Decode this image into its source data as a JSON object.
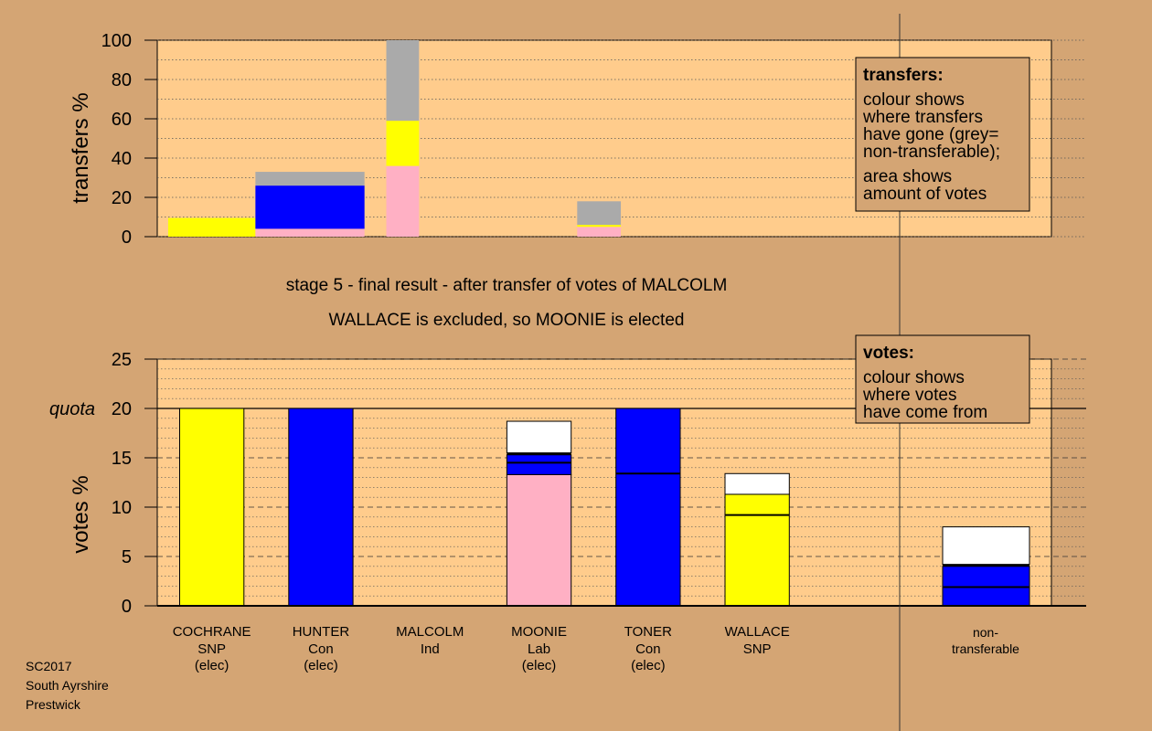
{
  "colors": {
    "background": "#d4a574",
    "plot_bg": "#ffcc8c",
    "SNP": "#ffff00",
    "Con": "#0000ff",
    "Lab": "#ffb0c4",
    "nontransferable": "#aaaaaa",
    "exhausted": "#ffffff"
  },
  "titles": {
    "line1": "stage 5 - final result - after transfer of votes of MALCOLM",
    "line2": "WALLACE is excluded, so MOONIE is elected"
  },
  "legend_transfers": {
    "title": "transfers:",
    "lines": [
      "colour shows",
      "where transfers",
      "have gone (grey=",
      "non-transferable);",
      "area shows",
      "amount of votes"
    ]
  },
  "legend_votes": {
    "title": "votes:",
    "lines": [
      "colour shows",
      "where votes",
      "have come from"
    ]
  },
  "quota_label": "quota",
  "footer": [
    "SC2017",
    "South Ayrshire",
    "Prestwick"
  ],
  "candidates": [
    {
      "name": "COCHRANE",
      "party": "SNP",
      "status": "(elec)"
    },
    {
      "name": "HUNTER",
      "party": "Con",
      "status": "(elec)"
    },
    {
      "name": "MALCOLM",
      "party": "Ind",
      "status": ""
    },
    {
      "name": "MOONIE",
      "party": "Lab",
      "status": "(elec)"
    },
    {
      "name": "TONER",
      "party": "Con",
      "status": "(elec)"
    },
    {
      "name": "WALLACE",
      "party": "SNP",
      "status": ""
    },
    {
      "name": "non-",
      "party": "transferable",
      "status": ""
    }
  ],
  "chart_data": [
    {
      "type": "bar",
      "ylabel": "transfers %",
      "ylim": [
        0,
        100
      ],
      "yticks": [
        0,
        20,
        40,
        60,
        80,
        100
      ],
      "grid": true,
      "bars": [
        {
          "x_range": [
            0.1,
            0.9
          ],
          "segments": [
            {
              "color": "SNP",
              "from": 0,
              "to": 9.5
            }
          ]
        },
        {
          "x_range": [
            0.9,
            1.9
          ],
          "segments": [
            {
              "color": "Lab",
              "from": 0,
              "to": 4
            },
            {
              "color": "Con",
              "from": 4,
              "to": 26
            },
            {
              "color": "nontransferable",
              "from": 26,
              "to": 33
            }
          ]
        },
        {
          "x_range": [
            2.1,
            2.4
          ],
          "segments": [
            {
              "color": "Lab",
              "from": 0,
              "to": 36
            },
            {
              "color": "SNP",
              "from": 36,
              "to": 59
            },
            {
              "color": "nontransferable",
              "from": 59,
              "to": 100
            }
          ]
        },
        {
          "x_range": [
            3.85,
            4.25
          ],
          "segments": [
            {
              "color": "Lab",
              "from": 0,
              "to": 5
            },
            {
              "color": "SNP",
              "from": 5,
              "to": 6
            },
            {
              "color": "nontransferable",
              "from": 6,
              "to": 18
            }
          ]
        }
      ]
    },
    {
      "type": "bar",
      "ylabel": "votes %",
      "ylim": [
        0,
        25
      ],
      "yticks": [
        0,
        5,
        10,
        15,
        20,
        25
      ],
      "quota": 20,
      "grid": true,
      "categories": [
        "COCHRANE",
        "HUNTER",
        "MALCOLM",
        "MOONIE",
        "TONER",
        "WALLACE",
        "non-transferable"
      ],
      "bars": [
        {
          "index": 0,
          "segments": [
            {
              "color": "SNP",
              "from": 0,
              "to": 20
            }
          ]
        },
        {
          "index": 1,
          "segments": [
            {
              "color": "Con",
              "from": 0,
              "to": 20
            }
          ]
        },
        {
          "index": 2,
          "segments": []
        },
        {
          "index": 3,
          "segments": [
            {
              "color": "Lab",
              "from": 0,
              "to": 13.3
            },
            {
              "color": "Con",
              "from": 13.3,
              "to": 15.3
            },
            {
              "color": "exhausted",
              "from": 15.5,
              "to": 18.7
            }
          ],
          "lines": [
            14.5,
            15.4
          ]
        },
        {
          "index": 4,
          "segments": [
            {
              "color": "Con",
              "from": 0,
              "to": 20
            }
          ],
          "lines": [
            13.4
          ]
        },
        {
          "index": 5,
          "segments": [
            {
              "color": "SNP",
              "from": 0,
              "to": 11.3
            },
            {
              "color": "exhausted",
              "from": 11.3,
              "to": 13.4
            }
          ],
          "lines": [
            9.2
          ]
        },
        {
          "index": 6,
          "segments": [
            {
              "color": "Con",
              "from": 0,
              "to": 4
            },
            {
              "color": "exhausted",
              "from": 4.2,
              "to": 8
            }
          ],
          "lines": [
            1.9,
            4.1
          ]
        }
      ]
    }
  ]
}
